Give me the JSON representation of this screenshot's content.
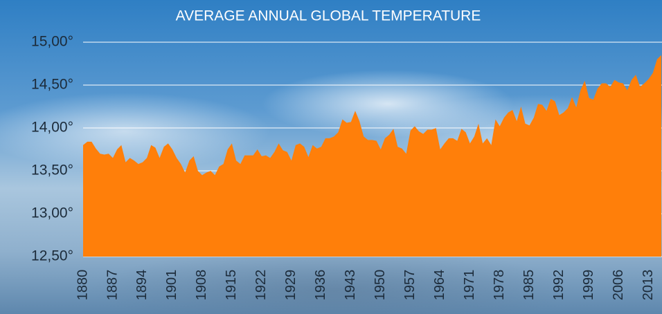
{
  "chart_data": {
    "type": "area",
    "title": "AVERAGE ANNUAL GLOBAL TEMPERATURE",
    "x": [
      1880,
      1881,
      1882,
      1883,
      1884,
      1885,
      1886,
      1887,
      1888,
      1889,
      1890,
      1891,
      1892,
      1893,
      1894,
      1895,
      1896,
      1897,
      1898,
      1899,
      1900,
      1901,
      1902,
      1903,
      1904,
      1905,
      1906,
      1907,
      1908,
      1909,
      1910,
      1911,
      1912,
      1913,
      1914,
      1915,
      1916,
      1917,
      1918,
      1919,
      1920,
      1921,
      1922,
      1923,
      1924,
      1925,
      1926,
      1927,
      1928,
      1929,
      1930,
      1931,
      1932,
      1933,
      1934,
      1935,
      1936,
      1937,
      1938,
      1939,
      1940,
      1941,
      1942,
      1943,
      1944,
      1945,
      1946,
      1947,
      1948,
      1949,
      1950,
      1951,
      1952,
      1953,
      1954,
      1955,
      1956,
      1957,
      1958,
      1959,
      1960,
      1961,
      1962,
      1963,
      1964,
      1965,
      1966,
      1967,
      1968,
      1969,
      1970,
      1971,
      1972,
      1973,
      1974,
      1975,
      1976,
      1977,
      1978,
      1979,
      1980,
      1981,
      1982,
      1983,
      1984,
      1985,
      1986,
      1987,
      1988,
      1989,
      1990,
      1991,
      1992,
      1993,
      1994,
      1995,
      1996,
      1997,
      1998,
      1999,
      2000,
      2001,
      2002,
      2003,
      2004,
      2005,
      2006,
      2007,
      2008,
      2009,
      2010,
      2011,
      2012,
      2013,
      2014,
      2015,
      2016
    ],
    "values": [
      13.8,
      13.84,
      13.84,
      13.76,
      13.7,
      13.69,
      13.7,
      13.65,
      13.75,
      13.8,
      13.6,
      13.65,
      13.62,
      13.58,
      13.6,
      13.65,
      13.8,
      13.77,
      13.65,
      13.78,
      13.82,
      13.75,
      13.65,
      13.58,
      13.48,
      13.62,
      13.67,
      13.5,
      13.45,
      13.48,
      13.5,
      13.45,
      13.55,
      13.58,
      13.75,
      13.82,
      13.62,
      13.58,
      13.68,
      13.68,
      13.68,
      13.75,
      13.67,
      13.68,
      13.65,
      13.72,
      13.82,
      13.74,
      13.72,
      13.62,
      13.8,
      13.82,
      13.78,
      13.66,
      13.8,
      13.76,
      13.78,
      13.88,
      13.88,
      13.9,
      13.95,
      14.1,
      14.06,
      14.07,
      14.2,
      14.08,
      13.9,
      13.86,
      13.86,
      13.85,
      13.75,
      13.88,
      13.92,
      13.99,
      13.78,
      13.76,
      13.7,
      13.97,
      14.02,
      13.96,
      13.93,
      13.98,
      13.98,
      14.0,
      13.75,
      13.82,
      13.88,
      13.88,
      13.85,
      13.99,
      13.95,
      13.82,
      13.9,
      14.05,
      13.82,
      13.88,
      13.8,
      14.1,
      14.02,
      14.12,
      14.18,
      14.21,
      14.08,
      14.25,
      14.05,
      14.03,
      14.12,
      14.28,
      14.27,
      14.2,
      14.34,
      14.31,
      14.15,
      14.18,
      14.23,
      14.36,
      14.24,
      14.44,
      14.55,
      14.35,
      14.33,
      14.46,
      14.52,
      14.52,
      14.48,
      14.56,
      14.53,
      14.52,
      14.44,
      14.56,
      14.62,
      14.48,
      14.52,
      14.57,
      14.64,
      14.8,
      14.85
    ],
    "color": "#ff7f0a",
    "xlim": [
      1880,
      2016
    ],
    "xticks": [
      1880,
      1887,
      1894,
      1901,
      1908,
      1915,
      1922,
      1929,
      1936,
      1943,
      1950,
      1957,
      1964,
      1971,
      1978,
      1985,
      1992,
      1999,
      2006,
      2013
    ],
    "ylim": [
      12.5,
      15
    ],
    "yticks": [
      {
        "value": 12.5,
        "label": "12,50°"
      },
      {
        "value": 13,
        "label": "13,00°"
      },
      {
        "value": 13.5,
        "label": "13,50°"
      },
      {
        "value": 14,
        "label": "14,00°"
      },
      {
        "value": 14.5,
        "label": "14,50°"
      },
      {
        "value": 15,
        "label": "15,00°"
      }
    ],
    "grid": true
  }
}
